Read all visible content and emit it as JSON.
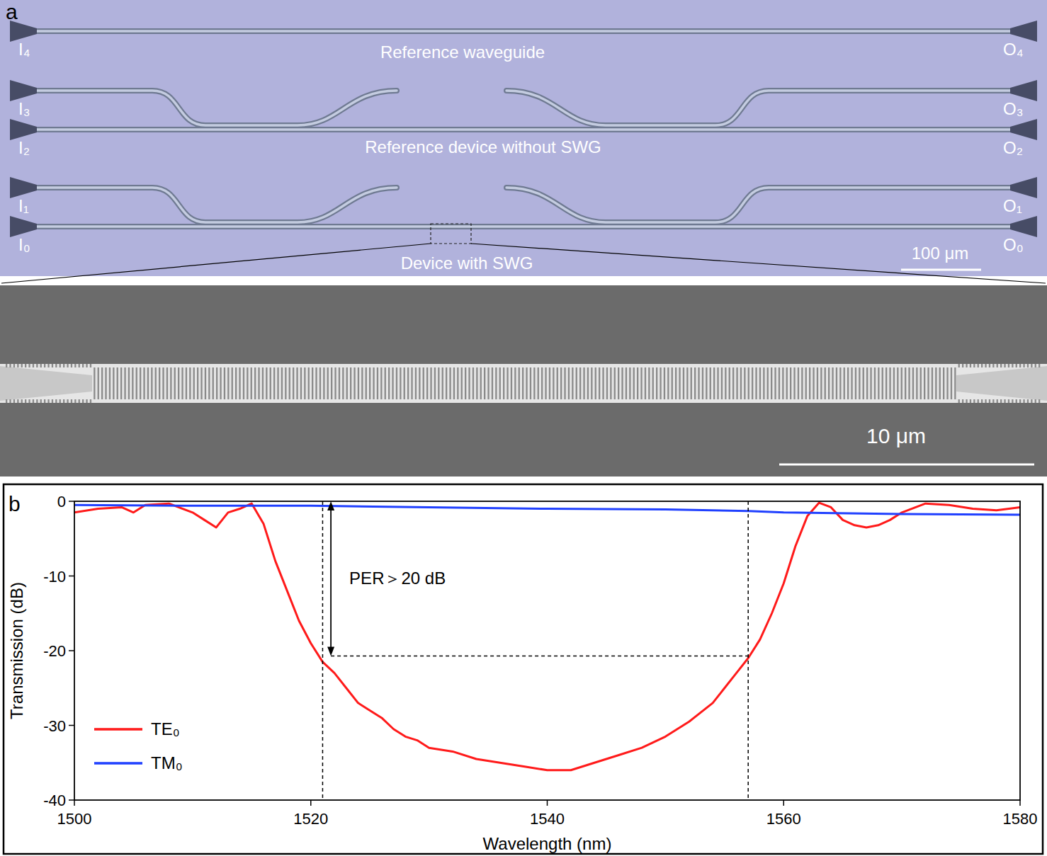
{
  "panel_a": {
    "letter": "a",
    "inputs": [
      "I₄",
      "I₃",
      "I₂",
      "I₁",
      "I₀"
    ],
    "outputs": [
      "O₄",
      "O₃",
      "O₂",
      "O₁",
      "O₀"
    ],
    "captions": [
      "Reference waveguide",
      "Reference device without SWG",
      "Device with SWG"
    ],
    "scale_bar": "100 μm",
    "sem_scale_bar": "10 μm"
  },
  "panel_b": {
    "letter": "b"
  },
  "chart_data": {
    "type": "line",
    "x_label": "Wavelength (nm)",
    "y_label": "Transmission (dB)",
    "xlim": [
      1500,
      1580
    ],
    "xticks": [
      1500,
      1520,
      1540,
      1560,
      1580
    ],
    "ylim": [
      -40,
      0
    ],
    "yticks": [
      -40,
      -30,
      -20,
      -10,
      0
    ],
    "legend": "lower left",
    "series": [
      {
        "name": "TE₀",
        "color": "#ff1a1a",
        "x": [
          1500,
          1502,
          1504,
          1505,
          1506,
          1508,
          1510,
          1511,
          1512,
          1513,
          1514,
          1515,
          1516,
          1517,
          1518,
          1519,
          1520,
          1521,
          1522,
          1523,
          1524,
          1525,
          1526,
          1527,
          1528,
          1529,
          1530,
          1532,
          1534,
          1536,
          1538,
          1540,
          1542,
          1544,
          1546,
          1548,
          1550,
          1552,
          1554,
          1555,
          1556,
          1557,
          1558,
          1559,
          1560,
          1561,
          1562,
          1563,
          1564,
          1565,
          1566,
          1567,
          1568,
          1569,
          1570,
          1572,
          1574,
          1576,
          1578,
          1580
        ],
        "values": [
          -1.5,
          -1,
          -0.8,
          -1.5,
          -0.5,
          -0.3,
          -1.5,
          -2.5,
          -3.5,
          -1.5,
          -1,
          -0.3,
          -3,
          -8,
          -12,
          -16,
          -19,
          -21.5,
          -23,
          -25,
          -27,
          -28,
          -29,
          -30.5,
          -31.5,
          -32,
          -33,
          -33.5,
          -34.5,
          -35,
          -35.5,
          -36,
          -36,
          -35,
          -34,
          -33,
          -31.5,
          -29.5,
          -27,
          -25,
          -23,
          -21,
          -18.5,
          -15,
          -11,
          -6,
          -2,
          -0.2,
          -0.8,
          -2.5,
          -3.2,
          -3.5,
          -3.2,
          -2.5,
          -1.5,
          -0.3,
          -0.5,
          -1,
          -1.2,
          -0.8
        ]
      },
      {
        "name": "TM₀",
        "color": "#2040ff",
        "x": [
          1500,
          1510,
          1520,
          1530,
          1540,
          1550,
          1557,
          1560,
          1570,
          1580
        ],
        "values": [
          -0.5,
          -0.6,
          -0.6,
          -0.8,
          -1.0,
          -1.1,
          -1.3,
          -1.5,
          -1.7,
          -1.8
        ]
      }
    ],
    "annotations": [
      {
        "text": "PER＞20 dB",
        "x": [
          1521,
          1557
        ],
        "y": -20.7,
        "arrow_x": 1521.7
      }
    ]
  }
}
